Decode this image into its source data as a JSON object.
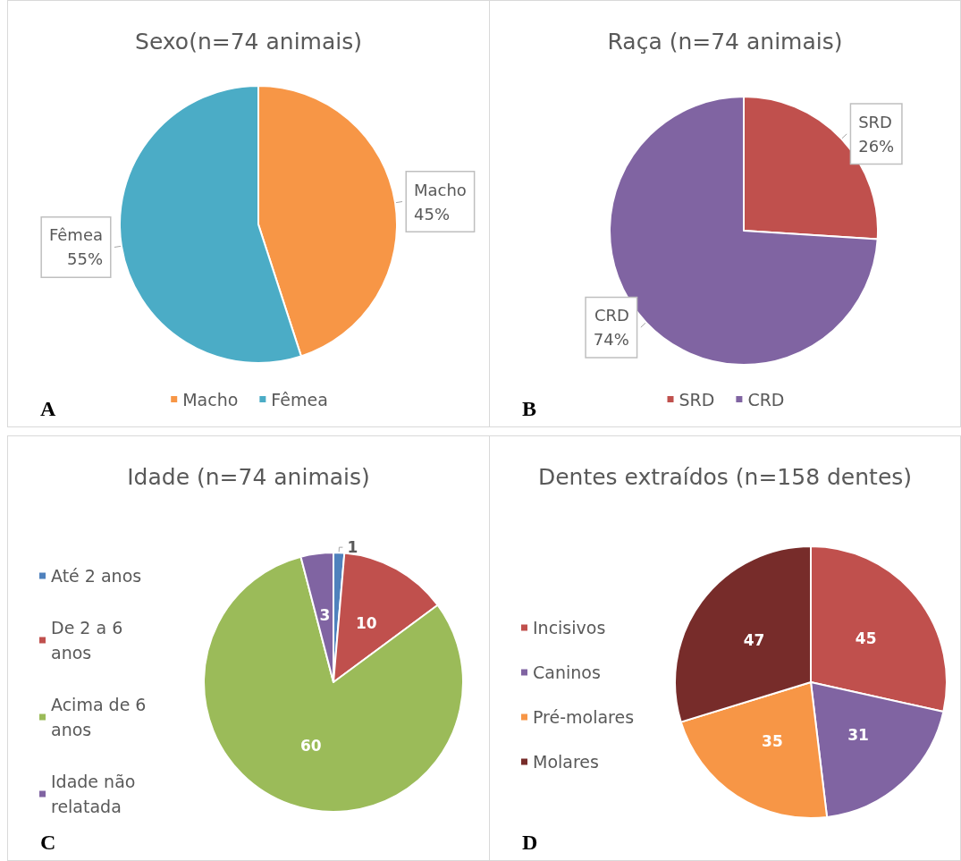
{
  "chart_data": [
    {
      "type": "pie",
      "title": "Sexo(n=74 animais)",
      "categories": [
        "Macho",
        "Fêmea"
      ],
      "values": [
        45,
        55
      ],
      "colors": [
        "#f79646",
        "#4bacc6"
      ],
      "value_labels": [
        "45%",
        "55%"
      ],
      "legend": "bottom",
      "annotations": [
        "A"
      ]
    },
    {
      "type": "pie",
      "title": "Raça (n=74 animais)",
      "categories": [
        "SRD",
        "CRD"
      ],
      "values": [
        26,
        74
      ],
      "colors": [
        "#c0504d",
        "#8064a2"
      ],
      "value_labels": [
        "26%",
        "74%"
      ],
      "legend": "bottom",
      "annotations": [
        "B"
      ]
    },
    {
      "type": "pie",
      "title": "Idade (n=74 animais)",
      "categories": [
        "Até 2 anos",
        "De 2 a 6 anos",
        "Acima de 6 anos",
        "Idade não relatada"
      ],
      "values": [
        1,
        10,
        60,
        3
      ],
      "colors": [
        "#4f81bd",
        "#c0504d",
        "#9bbb59",
        "#8064a2"
      ],
      "data_labels": true,
      "legend": "left",
      "annotations": [
        "C"
      ]
    },
    {
      "type": "pie",
      "title": "Dentes extraídos (n=158 dentes)",
      "categories": [
        "Incisivos",
        "Caninos",
        "Pré-molares",
        "Molares"
      ],
      "values": [
        45,
        31,
        35,
        47
      ],
      "colors": [
        "#c0504d",
        "#8064a2",
        "#f79646",
        "#772c2a"
      ],
      "data_labels": true,
      "legend": "left",
      "annotations": [
        "D"
      ]
    }
  ]
}
